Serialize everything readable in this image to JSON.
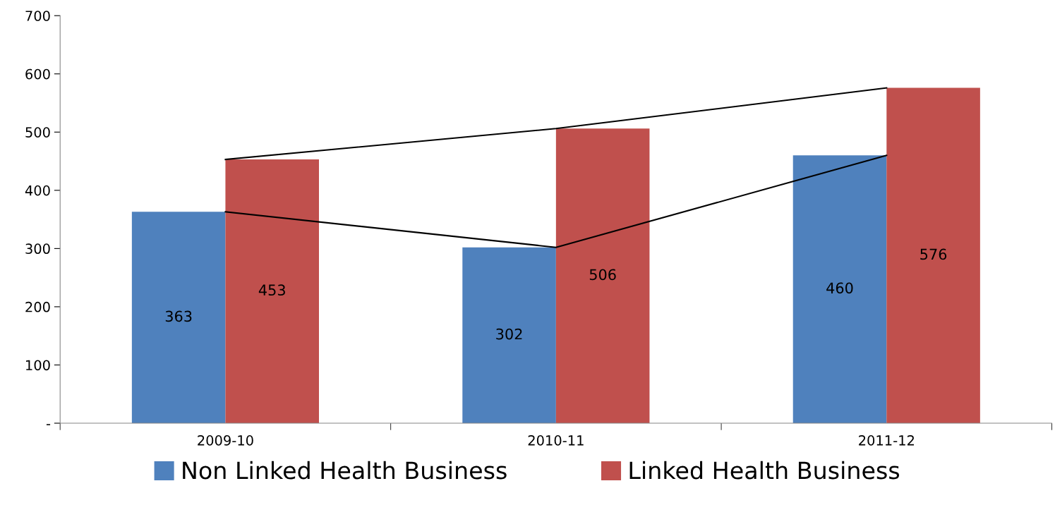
{
  "chart_data": {
    "type": "bar",
    "categories": [
      "2009-10",
      "2010-11",
      "2011-12"
    ],
    "series": [
      {
        "name": "Non Linked Health Business",
        "color": "#4f81bd",
        "values": [
          363,
          302,
          460
        ],
        "value_labels": [
          "363",
          "302",
          "460"
        ]
      },
      {
        "name": "Linked Health Business",
        "color": "#c0504d",
        "values": [
          453,
          506,
          576
        ],
        "value_labels": [
          "453",
          "506",
          "576"
        ]
      },
      {
        "type": "line",
        "color": "#000000",
        "values": [
          363,
          302,
          460
        ]
      },
      {
        "type": "line",
        "color": "#000000",
        "values": [
          453,
          506,
          576
        ]
      }
    ],
    "ylim": [
      0,
      700
    ],
    "yticks": [
      {
        "value": 0,
        "label": "-"
      },
      100,
      200,
      300,
      400,
      500,
      600,
      700
    ],
    "grid": false,
    "legend": "bottom"
  }
}
